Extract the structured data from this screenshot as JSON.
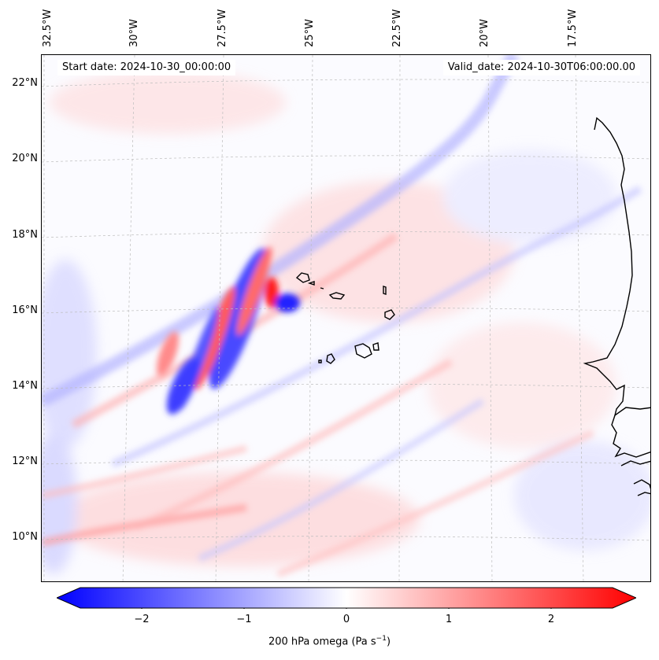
{
  "header": {
    "start_date": "Start date: 2024-10-30_00:00:00",
    "valid_date": "Valid_date: 2024-10-30T06:00:00.00"
  },
  "map": {
    "lon_labels": [
      "32.5°W",
      "30°W",
      "27.5°W",
      "25°W",
      "22.5°W",
      "20°W",
      "17.5°W"
    ],
    "lat_labels": [
      "22°N",
      "20°N",
      "18°N",
      "16°N",
      "14°N",
      "12°N",
      "10°N"
    ],
    "gridlines": "dashed",
    "coastline_color": "#000000"
  },
  "colorbar": {
    "label": "200 hPa omega (Pa s",
    "label_sup": "−1",
    "label_end": ")",
    "ticks": [
      "−2",
      "−1",
      "0",
      "1",
      "2"
    ],
    "vmin": -2.6,
    "vmax": 2.6,
    "colormap": "bwr",
    "colors": {
      "negative": "#0000ff",
      "zero": "#ffffff",
      "positive": "#ff0000"
    },
    "extend": "both"
  }
}
